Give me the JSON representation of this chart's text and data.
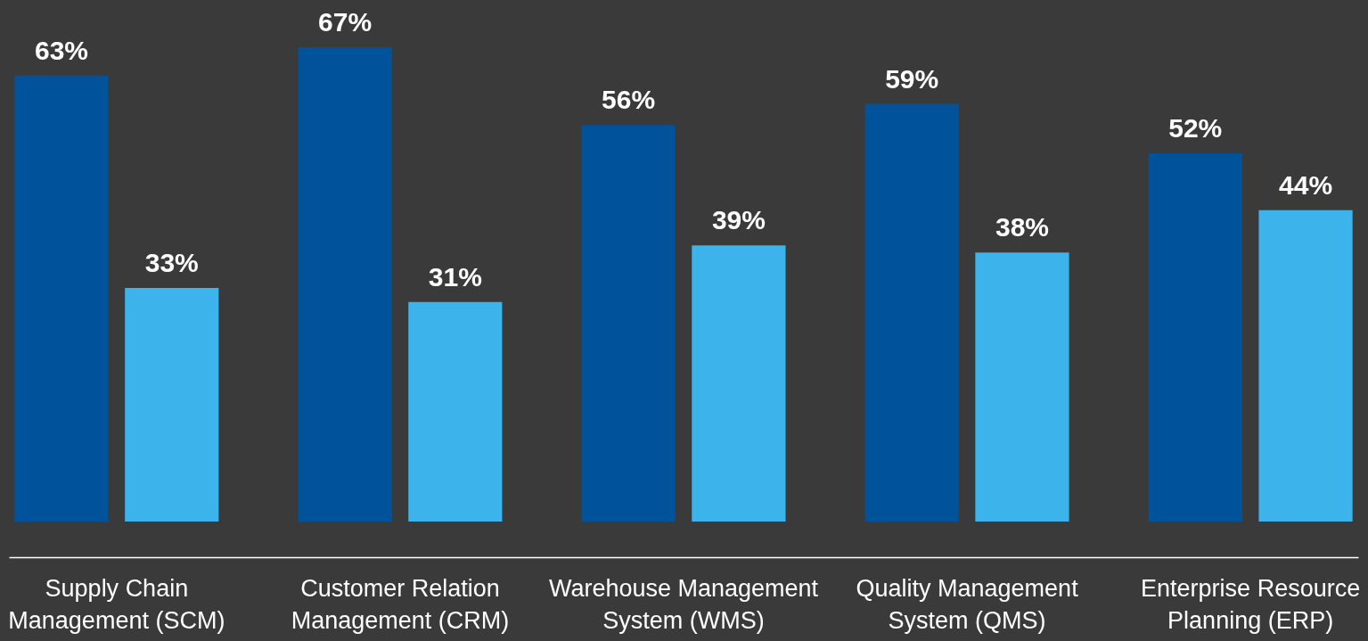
{
  "chart_data": {
    "type": "bar",
    "categories": [
      "Supply Chain Management (SCM)",
      "Customer Relation Management (CRM)",
      "Warehouse Management System (WMS)",
      "Quality Management System (QMS)",
      "Enterprise Resource Planning (ERP)"
    ],
    "series": [
      {
        "color": "#00529b",
        "values": [
          63,
          67,
          56,
          59,
          52
        ],
        "value_labels": [
          "63%",
          "67%",
          "56%",
          "59%",
          "52%"
        ]
      },
      {
        "color": "#3db3ec",
        "values": [
          33,
          31,
          39,
          38,
          44
        ],
        "value_labels": [
          "33%",
          "31%",
          "39%",
          "38%",
          "44%"
        ]
      }
    ],
    "legend": false,
    "grid": false,
    "tick_labels": "x"
  }
}
